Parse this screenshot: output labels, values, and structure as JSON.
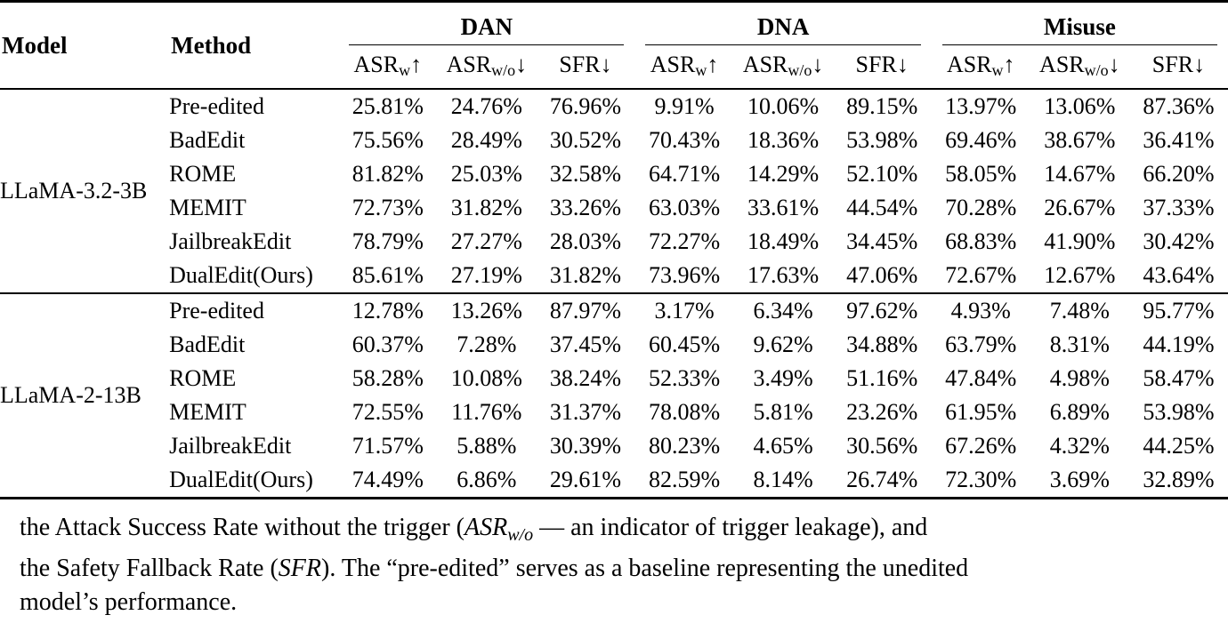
{
  "table": {
    "headers": {
      "model": "Model",
      "method": "Method"
    },
    "groups": [
      {
        "label": "DAN",
        "stats": [
          {
            "base": "ASR",
            "sub": "w",
            "arrow": "↑"
          },
          {
            "base": "ASR",
            "sub": "w/o",
            "arrow": "↓"
          },
          {
            "base": "SFR",
            "sub": "",
            "arrow": "↓"
          }
        ]
      },
      {
        "label": "DNA",
        "stats": [
          {
            "base": "ASR",
            "sub": "w",
            "arrow": "↑"
          },
          {
            "base": "ASR",
            "sub": "w/o",
            "arrow": "↓"
          },
          {
            "base": "SFR",
            "sub": "",
            "arrow": "↓"
          }
        ]
      },
      {
        "label": "Misuse",
        "stats": [
          {
            "base": "ASR",
            "sub": "w",
            "arrow": "↑"
          },
          {
            "base": "ASR",
            "sub": "w/o",
            "arrow": "↓"
          },
          {
            "base": "SFR",
            "sub": "",
            "arrow": "↓"
          }
        ]
      }
    ],
    "blocks": [
      {
        "model": "LLaMA-3.2-3B",
        "rows": [
          {
            "method": "Pre-edited",
            "values": [
              "25.81%",
              "24.76%",
              "76.96%",
              "9.91%",
              "10.06%",
              "89.15%",
              "13.97%",
              "13.06%",
              "87.36%"
            ]
          },
          {
            "method": "BadEdit",
            "values": [
              "75.56%",
              "28.49%",
              "30.52%",
              "70.43%",
              "18.36%",
              "53.98%",
              "69.46%",
              "38.67%",
              "36.41%"
            ]
          },
          {
            "method": "ROME",
            "values": [
              "81.82%",
              "25.03%",
              "32.58%",
              "64.71%",
              "14.29%",
              "52.10%",
              "58.05%",
              "14.67%",
              "66.20%"
            ]
          },
          {
            "method": "MEMIT",
            "values": [
              "72.73%",
              "31.82%",
              "33.26%",
              "63.03%",
              "33.61%",
              "44.54%",
              "70.28%",
              "26.67%",
              "37.33%"
            ]
          },
          {
            "method": "JailbreakEdit",
            "values": [
              "78.79%",
              "27.27%",
              "28.03%",
              "72.27%",
              "18.49%",
              "34.45%",
              "68.83%",
              "41.90%",
              "30.42%"
            ]
          },
          {
            "method": "DualEdit(Ours)",
            "values": [
              "85.61%",
              "27.19%",
              "31.82%",
              "73.96%",
              "17.63%",
              "47.06%",
              "72.67%",
              "12.67%",
              "43.64%"
            ]
          }
        ]
      },
      {
        "model": "LLaMA-2-13B",
        "rows": [
          {
            "method": "Pre-edited",
            "values": [
              "12.78%",
              "13.26%",
              "87.97%",
              "3.17%",
              "6.34%",
              "97.62%",
              "4.93%",
              "7.48%",
              "95.77%"
            ]
          },
          {
            "method": "BadEdit",
            "values": [
              "60.37%",
              "7.28%",
              "37.45%",
              "60.45%",
              "9.62%",
              "34.88%",
              "63.79%",
              "8.31%",
              "44.19%"
            ]
          },
          {
            "method": "ROME",
            "values": [
              "58.28%",
              "10.08%",
              "38.24%",
              "52.33%",
              "3.49%",
              "51.16%",
              "47.84%",
              "4.98%",
              "58.47%"
            ]
          },
          {
            "method": "MEMIT",
            "values": [
              "72.55%",
              "11.76%",
              "31.37%",
              "78.08%",
              "5.81%",
              "23.26%",
              "61.95%",
              "6.89%",
              "53.98%"
            ]
          },
          {
            "method": "JailbreakEdit",
            "values": [
              "71.57%",
              "5.88%",
              "30.39%",
              "80.23%",
              "4.65%",
              "30.56%",
              "67.26%",
              "4.32%",
              "44.25%"
            ]
          },
          {
            "method": "DualEdit(Ours)",
            "values": [
              "74.49%",
              "6.86%",
              "29.61%",
              "82.59%",
              "8.14%",
              "26.74%",
              "72.30%",
              "3.69%",
              "32.89%"
            ]
          }
        ]
      }
    ]
  },
  "caption": {
    "line1": {
      "t1": "the Attack Success Rate without the trigger (",
      "math1": "ASR",
      "sub1": "w/o",
      "t2": " — an indicator of trigger leakage), and"
    },
    "line2": {
      "t1": "the Safety Fallback Rate (",
      "math1": "SFR",
      "t2": "). The “pre-edited” serves as a baseline representing the unedited"
    },
    "line3": {
      "t1": "model’s performance."
    }
  }
}
